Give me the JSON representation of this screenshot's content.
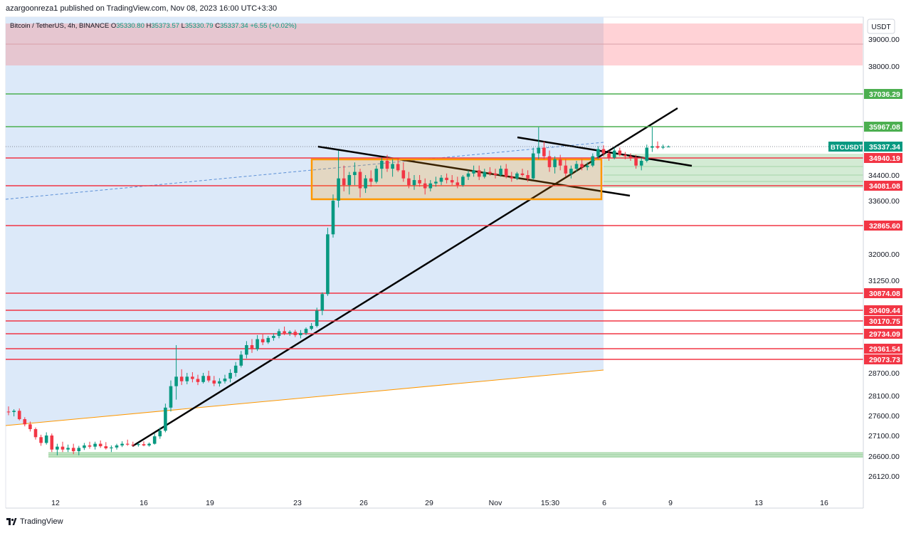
{
  "header": {
    "published_by": "azargoonreza1 published on TradingView.com, Nov 08, 2023 16:00 UTC+3:30"
  },
  "footer": {
    "brand": "TradingView"
  },
  "chart_data": {
    "type": "candlestick",
    "symbol_line": {
      "name": "Bitcoin / TetherUS, 4h, BINANCE",
      "ohlc": [
        {
          "label": "O",
          "value": "35330.80"
        },
        {
          "label": "H",
          "value": "35373.57"
        },
        {
          "label": "L",
          "value": "35330.79"
        },
        {
          "label": "C",
          "value": "35337.34"
        }
      ],
      "change": "+6.55 (+0.02%)"
    },
    "currency": "USDT",
    "y_axis_labels": [
      "39000.00",
      "38000.00",
      "34400.00",
      "33600.00",
      "32000.00",
      "31250.00",
      "28700.00",
      "28100.00",
      "27600.00",
      "27100.00",
      "26600.00",
      "26120.00"
    ],
    "x_axis_labels": [
      "12",
      "16",
      "19",
      "23",
      "26",
      "29",
      "Nov",
      "15:30",
      "6",
      "9",
      "13",
      "16"
    ],
    "colors": {
      "up": "#089981",
      "down": "#f23645",
      "support_green": "#4caf50",
      "resistance_red": "#f23645",
      "box": "#ff9800",
      "blue_zone": "#dce9f9",
      "red_zone": "#ffcdd2"
    },
    "levels": [
      {
        "price": "37036.29",
        "color": "#4caf50"
      },
      {
        "price": "35967.08",
        "color": "#4caf50"
      },
      {
        "price": "34940.19",
        "color": "#f23645"
      },
      {
        "price": "34081.08",
        "color": "#f23645"
      },
      {
        "price": "32865.60",
        "color": "#f23645"
      },
      {
        "price": "30874.08",
        "color": "#f23645"
      },
      {
        "price": "30409.44",
        "color": "#f23645"
      },
      {
        "price": "30170.75",
        "color": "#f23645"
      },
      {
        "price": "29734.09",
        "color": "#f23645"
      },
      {
        "price": "29361.54",
        "color": "#f23645"
      },
      {
        "price": "29073.73",
        "color": "#f23645"
      }
    ],
    "last_price": {
      "symbol": "BTCUSDT",
      "price": "35337.34"
    },
    "candles": [
      {
        "o": 27700,
        "h": 27830,
        "l": 27610,
        "c": 27690
      },
      {
        "o": 27690,
        "h": 27760,
        "l": 27580,
        "c": 27720
      },
      {
        "o": 27720,
        "h": 27780,
        "l": 27480,
        "c": 27510
      },
      {
        "o": 27510,
        "h": 27560,
        "l": 27330,
        "c": 27380
      },
      {
        "o": 27380,
        "h": 27450,
        "l": 27200,
        "c": 27260
      },
      {
        "o": 27260,
        "h": 27300,
        "l": 27000,
        "c": 27060
      },
      {
        "o": 27060,
        "h": 27120,
        "l": 26850,
        "c": 26920
      },
      {
        "o": 26920,
        "h": 27180,
        "l": 26880,
        "c": 27100
      },
      {
        "o": 27100,
        "h": 27150,
        "l": 26700,
        "c": 26760
      },
      {
        "o": 26760,
        "h": 26900,
        "l": 26620,
        "c": 26830
      },
      {
        "o": 26830,
        "h": 26950,
        "l": 26700,
        "c": 26760
      },
      {
        "o": 26760,
        "h": 26880,
        "l": 26700,
        "c": 26800
      },
      {
        "o": 26800,
        "h": 26900,
        "l": 26650,
        "c": 26720
      },
      {
        "o": 26720,
        "h": 26850,
        "l": 26620,
        "c": 26800
      },
      {
        "o": 26800,
        "h": 26920,
        "l": 26750,
        "c": 26860
      },
      {
        "o": 26860,
        "h": 26950,
        "l": 26780,
        "c": 26830
      },
      {
        "o": 26830,
        "h": 26950,
        "l": 26760,
        "c": 26900
      },
      {
        "o": 26900,
        "h": 26980,
        "l": 26800,
        "c": 26840
      },
      {
        "o": 26840,
        "h": 26940,
        "l": 26760,
        "c": 26790
      },
      {
        "o": 26790,
        "h": 26860,
        "l": 26700,
        "c": 26810
      },
      {
        "o": 26810,
        "h": 26900,
        "l": 26760,
        "c": 26860
      },
      {
        "o": 26860,
        "h": 26960,
        "l": 26820,
        "c": 26900
      },
      {
        "o": 26900,
        "h": 27000,
        "l": 26850,
        "c": 26880
      },
      {
        "o": 26880,
        "h": 26950,
        "l": 26830,
        "c": 26870
      },
      {
        "o": 26870,
        "h": 26920,
        "l": 26830,
        "c": 26890
      },
      {
        "o": 26890,
        "h": 26960,
        "l": 26840,
        "c": 26860
      },
      {
        "o": 26860,
        "h": 26930,
        "l": 26830,
        "c": 26900
      },
      {
        "o": 26900,
        "h": 27150,
        "l": 26880,
        "c": 27080
      },
      {
        "o": 27080,
        "h": 27300,
        "l": 27020,
        "c": 27220
      },
      {
        "o": 27220,
        "h": 27900,
        "l": 27180,
        "c": 27800
      },
      {
        "o": 27800,
        "h": 28500,
        "l": 27700,
        "c": 28350
      },
      {
        "o": 28350,
        "h": 29450,
        "l": 28000,
        "c": 28600
      },
      {
        "o": 28600,
        "h": 28800,
        "l": 28380,
        "c": 28480
      },
      {
        "o": 28480,
        "h": 28700,
        "l": 28400,
        "c": 28600
      },
      {
        "o": 28600,
        "h": 28720,
        "l": 28450,
        "c": 28540
      },
      {
        "o": 28540,
        "h": 28650,
        "l": 28380,
        "c": 28460
      },
      {
        "o": 28460,
        "h": 28700,
        "l": 28420,
        "c": 28620
      },
      {
        "o": 28620,
        "h": 28760,
        "l": 28450,
        "c": 28500
      },
      {
        "o": 28500,
        "h": 28620,
        "l": 28350,
        "c": 28420
      },
      {
        "o": 28420,
        "h": 28560,
        "l": 28340,
        "c": 28480
      },
      {
        "o": 28480,
        "h": 28650,
        "l": 28420,
        "c": 28550
      },
      {
        "o": 28550,
        "h": 28800,
        "l": 28450,
        "c": 28700
      },
      {
        "o": 28700,
        "h": 29000,
        "l": 28600,
        "c": 28900
      },
      {
        "o": 28900,
        "h": 29300,
        "l": 28850,
        "c": 29200
      },
      {
        "o": 29200,
        "h": 29550,
        "l": 29100,
        "c": 29450
      },
      {
        "o": 29450,
        "h": 29600,
        "l": 29250,
        "c": 29350
      },
      {
        "o": 29350,
        "h": 29700,
        "l": 29300,
        "c": 29600
      },
      {
        "o": 29600,
        "h": 29720,
        "l": 29450,
        "c": 29520
      },
      {
        "o": 29520,
        "h": 29680,
        "l": 29480,
        "c": 29630
      },
      {
        "o": 29630,
        "h": 29750,
        "l": 29560,
        "c": 29680
      },
      {
        "o": 29680,
        "h": 29900,
        "l": 29620,
        "c": 29820
      },
      {
        "o": 29820,
        "h": 29980,
        "l": 29700,
        "c": 29750
      },
      {
        "o": 29750,
        "h": 29850,
        "l": 29680,
        "c": 29800
      },
      {
        "o": 29800,
        "h": 29870,
        "l": 29650,
        "c": 29700
      },
      {
        "o": 29700,
        "h": 29860,
        "l": 29620,
        "c": 29760
      },
      {
        "o": 29760,
        "h": 29950,
        "l": 29700,
        "c": 29900
      },
      {
        "o": 29900,
        "h": 30100,
        "l": 29850,
        "c": 30000
      },
      {
        "o": 30000,
        "h": 30480,
        "l": 29950,
        "c": 30400
      },
      {
        "o": 30400,
        "h": 30900,
        "l": 30300,
        "c": 30850
      },
      {
        "o": 30850,
        "h": 32800,
        "l": 30800,
        "c": 32600
      },
      {
        "o": 32600,
        "h": 33800,
        "l": 32500,
        "c": 33600
      },
      {
        "o": 33600,
        "h": 35200,
        "l": 33400,
        "c": 34300
      },
      {
        "o": 34300,
        "h": 34700,
        "l": 33900,
        "c": 34100
      },
      {
        "o": 34100,
        "h": 34500,
        "l": 33800,
        "c": 34400
      },
      {
        "o": 34400,
        "h": 34800,
        "l": 34100,
        "c": 34500
      },
      {
        "o": 34500,
        "h": 34600,
        "l": 33700,
        "c": 34000
      },
      {
        "o": 34000,
        "h": 34400,
        "l": 33850,
        "c": 34300
      },
      {
        "o": 34300,
        "h": 34550,
        "l": 34050,
        "c": 34200
      },
      {
        "o": 34200,
        "h": 34700,
        "l": 34150,
        "c": 34600
      },
      {
        "o": 34600,
        "h": 34950,
        "l": 34300,
        "c": 34850
      },
      {
        "o": 34850,
        "h": 35050,
        "l": 34500,
        "c": 34600
      },
      {
        "o": 34600,
        "h": 34900,
        "l": 34350,
        "c": 34750
      },
      {
        "o": 34750,
        "h": 34950,
        "l": 34500,
        "c": 34550
      },
      {
        "o": 34550,
        "h": 34800,
        "l": 34200,
        "c": 34300
      },
      {
        "o": 34300,
        "h": 34500,
        "l": 34000,
        "c": 34100
      },
      {
        "o": 34100,
        "h": 34400,
        "l": 33950,
        "c": 34250
      },
      {
        "o": 34250,
        "h": 34400,
        "l": 34050,
        "c": 34150
      },
      {
        "o": 34150,
        "h": 34300,
        "l": 33800,
        "c": 34000
      },
      {
        "o": 34000,
        "h": 34250,
        "l": 33900,
        "c": 34150
      },
      {
        "o": 34150,
        "h": 34350,
        "l": 34050,
        "c": 34200
      },
      {
        "o": 34200,
        "h": 34400,
        "l": 34100,
        "c": 34320
      },
      {
        "o": 34320,
        "h": 34450,
        "l": 34150,
        "c": 34250
      },
      {
        "o": 34250,
        "h": 34400,
        "l": 34100,
        "c": 34180
      },
      {
        "o": 34180,
        "h": 34350,
        "l": 34000,
        "c": 34100
      },
      {
        "o": 34100,
        "h": 34400,
        "l": 34050,
        "c": 34350
      },
      {
        "o": 34350,
        "h": 34550,
        "l": 34250,
        "c": 34450
      },
      {
        "o": 34450,
        "h": 34700,
        "l": 34350,
        "c": 34550
      },
      {
        "o": 34550,
        "h": 34700,
        "l": 34250,
        "c": 34350
      },
      {
        "o": 34350,
        "h": 34600,
        "l": 34300,
        "c": 34500
      },
      {
        "o": 34500,
        "h": 34650,
        "l": 34380,
        "c": 34450
      },
      {
        "o": 34450,
        "h": 34600,
        "l": 34300,
        "c": 34400
      },
      {
        "o": 34400,
        "h": 34700,
        "l": 34350,
        "c": 34600
      },
      {
        "o": 34600,
        "h": 34750,
        "l": 34300,
        "c": 34350
      },
      {
        "o": 34350,
        "h": 34500,
        "l": 34200,
        "c": 34300
      },
      {
        "o": 34300,
        "h": 34500,
        "l": 34250,
        "c": 34450
      },
      {
        "o": 34450,
        "h": 34600,
        "l": 34350,
        "c": 34400
      },
      {
        "o": 34400,
        "h": 34550,
        "l": 34200,
        "c": 34300
      },
      {
        "o": 34300,
        "h": 35300,
        "l": 34250,
        "c": 35100
      },
      {
        "o": 35100,
        "h": 35950,
        "l": 34900,
        "c": 35300
      },
      {
        "o": 35300,
        "h": 35500,
        "l": 34900,
        "c": 35000
      },
      {
        "o": 35000,
        "h": 35200,
        "l": 34500,
        "c": 34650
      },
      {
        "o": 34650,
        "h": 35000,
        "l": 34450,
        "c": 34900
      },
      {
        "o": 34900,
        "h": 35050,
        "l": 34550,
        "c": 34700
      },
      {
        "o": 34700,
        "h": 34900,
        "l": 34350,
        "c": 34450
      },
      {
        "o": 34450,
        "h": 34700,
        "l": 34300,
        "c": 34600
      },
      {
        "o": 34600,
        "h": 34850,
        "l": 34500,
        "c": 34750
      },
      {
        "o": 34750,
        "h": 34900,
        "l": 34550,
        "c": 34650
      },
      {
        "o": 34650,
        "h": 34800,
        "l": 34550,
        "c": 34700
      },
      {
        "o": 34700,
        "h": 35100,
        "l": 34650,
        "c": 35000
      },
      {
        "o": 35000,
        "h": 35350,
        "l": 34900,
        "c": 35250
      },
      {
        "o": 35250,
        "h": 35380,
        "l": 35000,
        "c": 35100
      },
      {
        "o": 35100,
        "h": 35200,
        "l": 34850,
        "c": 34950
      },
      {
        "o": 34950,
        "h": 35300,
        "l": 34900,
        "c": 35200
      },
      {
        "o": 35200,
        "h": 35300,
        "l": 35000,
        "c": 35050
      },
      {
        "o": 35050,
        "h": 35150,
        "l": 34900,
        "c": 35000
      },
      {
        "o": 35000,
        "h": 35100,
        "l": 34850,
        "c": 34950
      },
      {
        "o": 34950,
        "h": 35050,
        "l": 34600,
        "c": 34700
      },
      {
        "o": 34700,
        "h": 34950,
        "l": 34550,
        "c": 34850
      },
      {
        "o": 34850,
        "h": 35400,
        "l": 34800,
        "c": 35300
      },
      {
        "o": 35300,
        "h": 35950,
        "l": 35150,
        "c": 35350
      },
      {
        "o": 35350,
        "h": 35500,
        "l": 35250,
        "c": 35300
      },
      {
        "o": 35300,
        "h": 35400,
        "l": 35250,
        "c": 35330
      },
      {
        "o": 35330,
        "h": 35373,
        "l": 35330,
        "c": 35337
      }
    ]
  }
}
